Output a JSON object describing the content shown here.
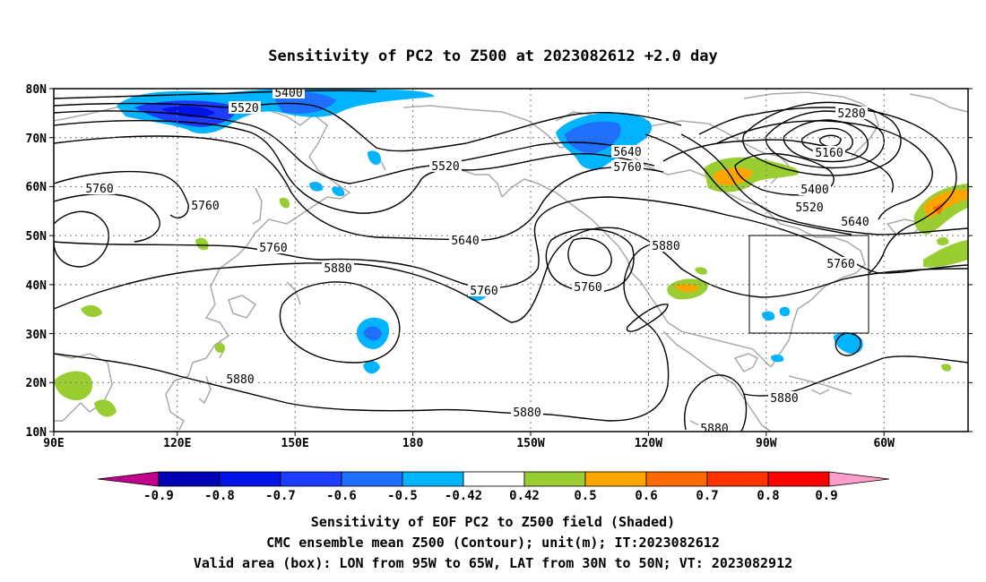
{
  "title": "Sensitivity of PC2 to Z500 at 2023082612 +2.0 day",
  "map": {
    "lat_labels": [
      "80N",
      "70N",
      "60N",
      "50N",
      "40N",
      "30N",
      "20N",
      "10N"
    ],
    "lon_labels": [
      "90E",
      "120E",
      "150E",
      "180",
      "150W",
      "120W",
      "90W",
      "60W"
    ],
    "contour_labels": [
      "5400",
      "5520",
      "5280",
      "5160",
      "5520",
      "5640",
      "5760",
      "5760",
      "5760",
      "5760",
      "5880",
      "5640",
      "5760",
      "5760",
      "5880",
      "5400",
      "5520",
      "5640",
      "5760",
      "5880",
      "5880",
      "5880",
      "5880"
    ],
    "valid_box": {
      "lon_min": "95W",
      "lon_max": "65W",
      "lat_min": "30N",
      "lat_max": "50N"
    }
  },
  "colorbar": {
    "labels": [
      "-0.9",
      "-0.8",
      "-0.7",
      "-0.6",
      "-0.5",
      "-0.42",
      "0.42",
      "0.5",
      "0.6",
      "0.7",
      "0.8",
      "0.9"
    ],
    "colors": [
      "#c0008c",
      "#0000b4",
      "#0014e6",
      "#1e3cff",
      "#1e6eff",
      "#00b4ff",
      "#00d2ff",
      "#ffffff",
      "#9acd32",
      "#ffa500",
      "#ff6a00",
      "#ff3200",
      "#ff0000",
      "#ff9ec8"
    ]
  },
  "caption": {
    "line1": "Sensitivity of EOF PC2 to Z500 field (Shaded)",
    "line2": "CMC ensemble mean Z500 (Contour); unit(m); IT:2023082612",
    "line3": "Valid area (box): LON from 95W to 65W, LAT from 30N to 50N; VT: 2023082912"
  }
}
